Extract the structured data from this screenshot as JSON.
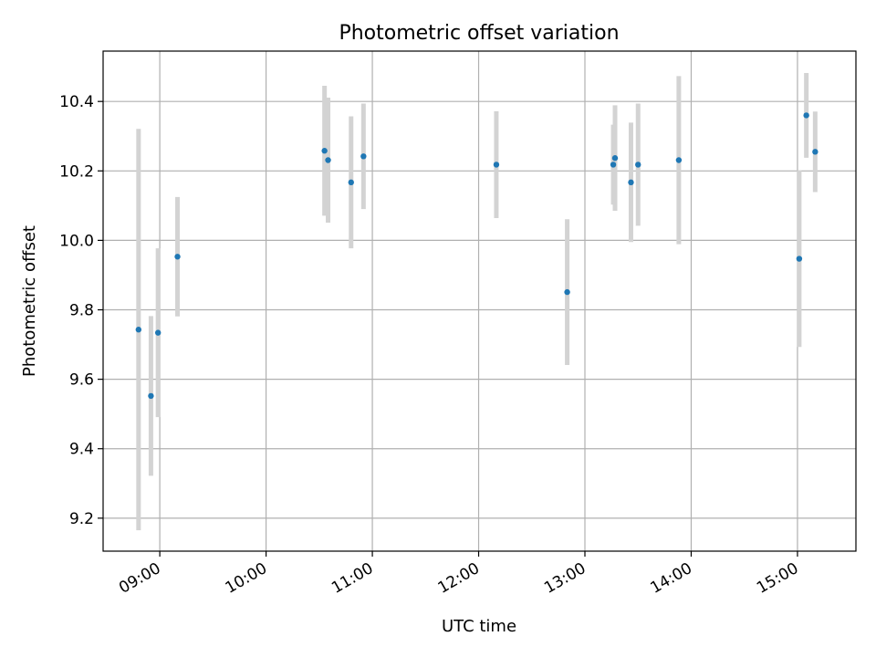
{
  "chart_data": {
    "type": "scatter",
    "title": "Photometric offset variation",
    "xlabel": "UTC time",
    "ylabel": "Photometric offset",
    "x_axis_kind": "time",
    "xlim": [
      "08:28",
      "15:33"
    ],
    "ylim": [
      9.105,
      10.545
    ],
    "x_ticks": [
      "09:00",
      "10:00",
      "11:00",
      "12:00",
      "13:00",
      "14:00",
      "15:00"
    ],
    "y_ticks": [
      "9.2",
      "9.4",
      "9.6",
      "9.8",
      "10.0",
      "10.2",
      "10.4"
    ],
    "grid": true,
    "legend": "none",
    "marker_color": "#1f77b4",
    "errorbar_color": "#d3d3d3",
    "points": [
      {
        "time": "08:48",
        "y": 9.743,
        "err": 0.578
      },
      {
        "time": "08:55",
        "y": 9.552,
        "err": 0.23
      },
      {
        "time": "08:59",
        "y": 9.734,
        "err": 0.243
      },
      {
        "time": "09:10",
        "y": 9.953,
        "err": 0.172
      },
      {
        "time": "10:33",
        "y": 10.258,
        "err": 0.187
      },
      {
        "time": "10:35",
        "y": 10.231,
        "err": 0.18
      },
      {
        "time": "10:48",
        "y": 10.167,
        "err": 0.19
      },
      {
        "time": "10:55",
        "y": 10.242,
        "err": 0.152
      },
      {
        "time": "12:10",
        "y": 10.218,
        "err": 0.154
      },
      {
        "time": "12:50",
        "y": 9.851,
        "err": 0.21
      },
      {
        "time": "13:16",
        "y": 10.218,
        "err": 0.115
      },
      {
        "time": "13:17",
        "y": 10.237,
        "err": 0.152
      },
      {
        "time": "13:26",
        "y": 10.167,
        "err": 0.172
      },
      {
        "time": "13:30",
        "y": 10.218,
        "err": 0.176
      },
      {
        "time": "13:53",
        "y": 10.231,
        "err": 0.242
      },
      {
        "time": "15:01",
        "y": 9.947,
        "err": 0.254
      },
      {
        "time": "15:05",
        "y": 10.36,
        "err": 0.122
      },
      {
        "time": "15:10",
        "y": 10.255,
        "err": 0.116
      }
    ]
  }
}
